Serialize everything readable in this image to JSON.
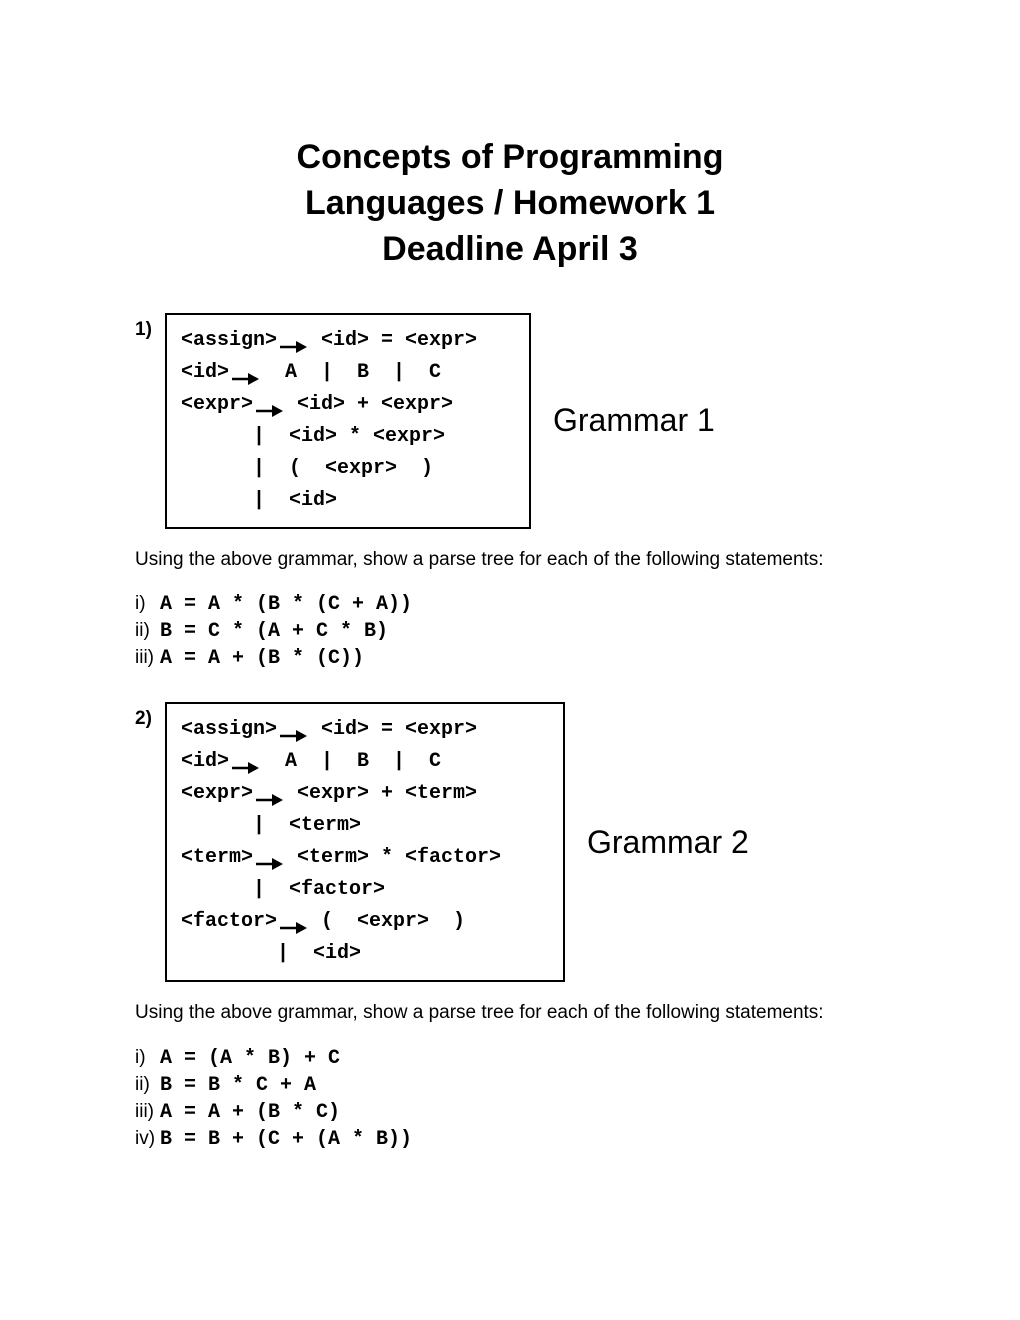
{
  "title_line1": "Concepts of Programming",
  "title_line2": "Languages / Homework 1",
  "title_line3": "Deadline April 3",
  "colors": {
    "background": "#ffffff",
    "text": "#000000",
    "border": "#000000"
  },
  "typography": {
    "title_fontsize": 34,
    "body_fontsize": 19,
    "grammar_fontsize": 20,
    "label_fontsize": 32,
    "mono_family": "Courier New",
    "sans_family": "Arial"
  },
  "question1": {
    "number": "1)",
    "label": "Grammar 1",
    "lines": [
      {
        "lhs": "<assign>",
        "rhs": " <id> = <expr>"
      },
      {
        "lhs": "<id>",
        "rhs": "  A  |  B  |  C"
      },
      {
        "lhs": "<expr>",
        "rhs": " <id> + <expr>"
      },
      {
        "cont": "      |  <id> * <expr>"
      },
      {
        "cont": "      |  (  <expr>  )"
      },
      {
        "cont": "      |  <id>"
      }
    ],
    "instruction": "Using the above grammar, show a parse tree for each of the following statements:",
    "statements": [
      {
        "idx": "i)",
        "expr": "A = A * (B * (C + A))"
      },
      {
        "idx": "ii)",
        "expr": "B = C * (A + C * B)"
      },
      {
        "idx": "iii)",
        "expr": "A = A + (B * (C))"
      }
    ]
  },
  "question2": {
    "number": "2)",
    "label": "Grammar 2",
    "lines": [
      {
        "lhs": "<assign>",
        "rhs": " <id> = <expr>"
      },
      {
        "lhs": "<id>",
        "rhs": "  A  |  B  |  C"
      },
      {
        "lhs": "<expr>",
        "rhs": " <expr> + <term>"
      },
      {
        "cont": "      |  <term>"
      },
      {
        "lhs": "<term>",
        "rhs": " <term> * <factor>"
      },
      {
        "cont": "      |  <factor>"
      },
      {
        "lhs": "<factor>",
        "rhs": " (  <expr>  )"
      },
      {
        "cont": "        |  <id>"
      }
    ],
    "instruction": "Using the above grammar, show a parse tree for each of the following statements:",
    "statements": [
      {
        "idx": "i)",
        "expr": "A = (A * B) + C"
      },
      {
        "idx": "ii)",
        "expr": "B = B * C + A"
      },
      {
        "idx": "iii)",
        "expr": "A = A + (B * C)"
      },
      {
        "idx": "iv)",
        "expr": "B = B + (C + (A * B))"
      }
    ]
  }
}
